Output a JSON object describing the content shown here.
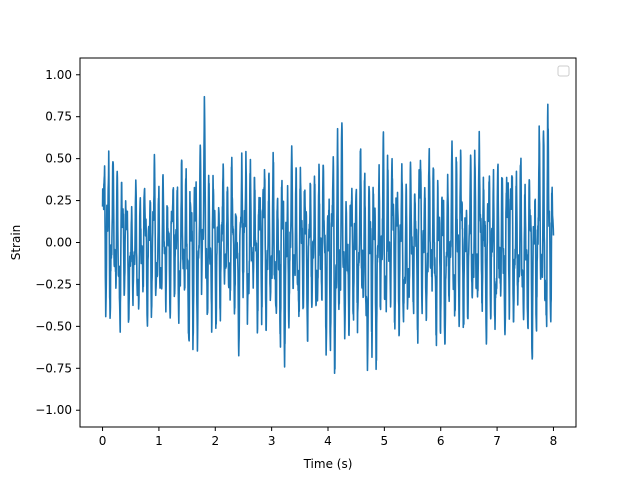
{
  "chart_data": {
    "type": "line",
    "title": "",
    "xlabel": "Time (s)",
    "ylabel": "Strain",
    "xlim": [
      -0.4,
      8.4
    ],
    "ylim": [
      -1.1,
      1.1
    ],
    "xticks": [
      0,
      1,
      2,
      3,
      4,
      5,
      6,
      7,
      8
    ],
    "xtick_labels": [
      "0",
      "1",
      "2",
      "3",
      "4",
      "5",
      "6",
      "7",
      "8"
    ],
    "yticks": [
      -1.0,
      -0.75,
      -0.5,
      -0.25,
      0.0,
      0.25,
      0.5,
      0.75,
      1.0
    ],
    "ytick_labels": [
      "−1.00",
      "−0.75",
      "−0.50",
      "−0.25",
      "0.00",
      "0.25",
      "0.50",
      "0.75",
      "1.00"
    ],
    "grid": false,
    "legend": {
      "location": "upper right",
      "entries": []
    },
    "series": [
      {
        "color": "#1f77b4",
        "x": [
          0.0,
          0.1,
          0.2,
          0.3,
          0.4,
          0.5,
          0.6,
          0.7,
          0.8,
          0.9,
          1.0,
          1.1,
          1.2,
          1.3,
          1.4,
          1.5,
          1.6,
          1.7,
          1.8,
          1.9,
          2.0,
          2.1,
          2.2,
          2.3,
          2.4,
          2.5,
          2.6,
          2.7,
          2.8,
          2.9,
          3.0,
          3.1,
          3.2,
          3.3,
          3.4,
          3.5,
          3.6,
          3.7,
          3.8,
          3.9,
          4.0,
          4.1,
          4.2,
          4.3,
          4.4,
          4.5,
          4.6,
          4.7,
          4.8,
          4.9,
          5.0,
          5.1,
          5.2,
          5.3,
          5.4,
          5.5,
          5.6,
          5.7,
          5.8,
          5.9,
          6.0,
          6.1,
          6.2,
          6.3,
          6.4,
          6.5,
          6.6,
          6.7,
          6.8,
          6.9,
          7.0,
          7.1,
          7.2,
          7.3,
          7.4,
          7.5,
          7.6,
          7.7,
          7.8,
          7.9,
          8.0
        ],
        "env_upper": [
          0.6,
          0.76,
          0.55,
          0.48,
          0.5,
          0.3,
          0.38,
          0.42,
          0.46,
          0.55,
          0.45,
          0.42,
          0.46,
          0.5,
          0.5,
          0.55,
          0.67,
          0.6,
          0.92,
          0.55,
          0.45,
          0.5,
          0.48,
          0.55,
          0.42,
          0.72,
          0.6,
          0.45,
          0.62,
          0.55,
          0.55,
          0.5,
          0.57,
          0.62,
          0.6,
          0.5,
          0.58,
          0.5,
          0.45,
          0.6,
          0.55,
          0.76,
          1.0,
          0.5,
          0.45,
          0.55,
          0.6,
          0.45,
          0.65,
          0.55,
          0.72,
          0.55,
          0.7,
          0.52,
          0.45,
          0.5,
          0.75,
          0.55,
          0.6,
          0.55,
          0.52,
          0.5,
          0.62,
          0.7,
          0.55,
          0.45,
          0.72,
          0.65,
          0.55,
          0.58,
          0.5,
          0.55,
          0.75,
          0.55,
          0.55,
          0.5,
          0.55,
          0.55,
          0.86,
          0.85,
          0.55
        ],
        "env_lower": [
          -0.58,
          -0.55,
          -0.5,
          -0.58,
          -0.45,
          -0.5,
          -0.55,
          -0.45,
          -0.5,
          -0.55,
          -0.48,
          -0.5,
          -0.45,
          -0.5,
          -0.55,
          -0.6,
          -0.88,
          -0.6,
          -0.5,
          -0.7,
          -0.55,
          -0.5,
          -0.45,
          -0.55,
          -0.7,
          -0.55,
          -0.58,
          -0.5,
          -0.6,
          -0.55,
          -0.62,
          -0.6,
          -0.88,
          -0.65,
          -0.55,
          -0.62,
          -0.58,
          -0.6,
          -0.5,
          -0.6,
          -0.72,
          -0.98,
          -0.82,
          -0.7,
          -0.6,
          -0.55,
          -0.62,
          -0.85,
          -0.82,
          -0.7,
          -0.62,
          -0.6,
          -0.55,
          -0.7,
          -0.6,
          -0.55,
          -0.62,
          -0.58,
          -0.52,
          -0.6,
          -0.7,
          -0.65,
          -0.6,
          -0.68,
          -0.6,
          -0.55,
          -0.6,
          -0.58,
          -0.6,
          -0.65,
          -0.6,
          -0.65,
          -0.6,
          -0.55,
          -0.65,
          -0.58,
          -0.85,
          -0.6,
          -0.62,
          -0.78,
          -0.62
        ]
      }
    ]
  }
}
